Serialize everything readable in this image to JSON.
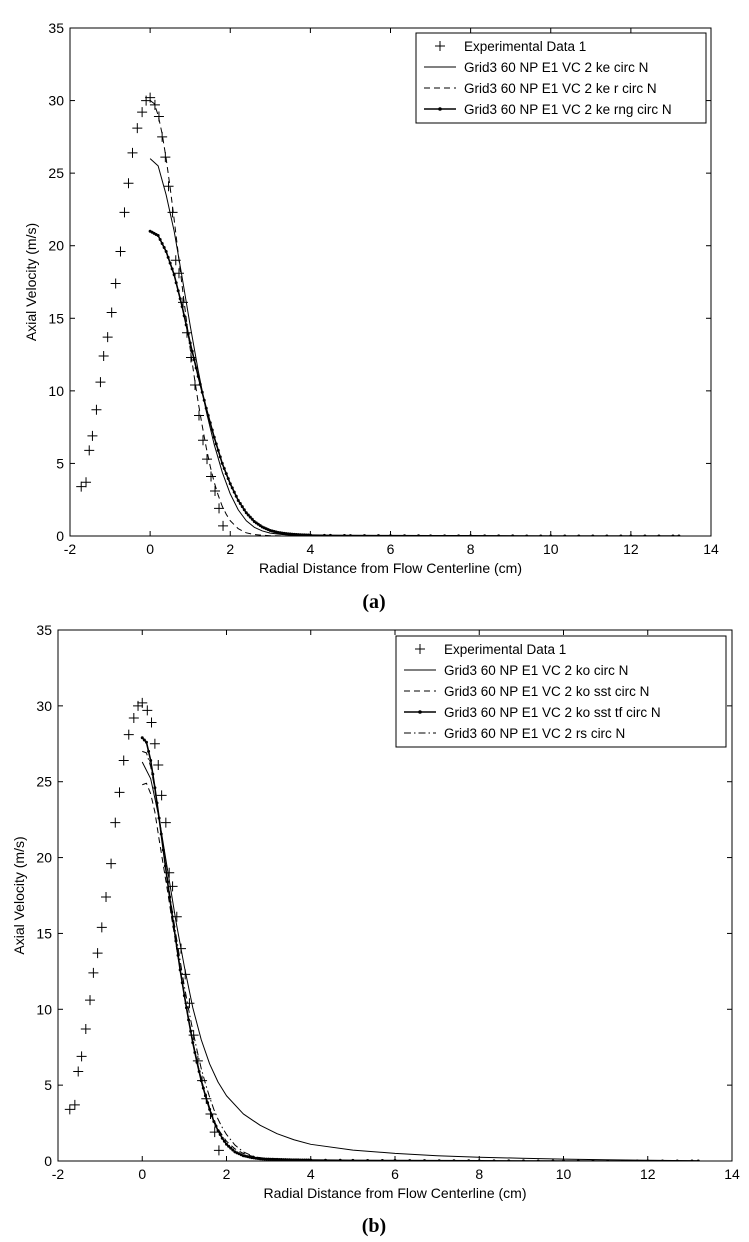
{
  "captions": {
    "a": "(a)",
    "b": "(b)"
  },
  "chart_data": [
    {
      "type": "line",
      "panel": "a",
      "xlabel": "Radial Distance from Flow Centerline (cm)",
      "ylabel": "Axial Velocity (m/s)",
      "xlim": [
        -2,
        14
      ],
      "ylim": [
        0,
        35
      ],
      "xticks": [
        "-2",
        "0",
        "2",
        "4",
        "6",
        "8",
        "10",
        "12",
        "14"
      ],
      "yticks": [
        "0",
        "5",
        "10",
        "15",
        "20",
        "25",
        "30",
        "35"
      ],
      "grid": false,
      "legend_position": "top-right",
      "series": [
        {
          "name": "Experimental Data 1",
          "style": "plus-markers",
          "x": [
            -1.72,
            -1.6,
            -1.52,
            -1.44,
            -1.34,
            -1.24,
            -1.16,
            -1.06,
            -0.96,
            -0.86,
            -0.74,
            -0.64,
            -0.54,
            -0.44,
            -0.32,
            -0.2,
            -0.1,
            0.0,
            0.12,
            0.22,
            0.3,
            0.38,
            0.46,
            0.56,
            0.64,
            0.72,
            0.82,
            0.92,
            1.02,
            1.12,
            1.22,
            1.32,
            1.42,
            1.52,
            1.62,
            1.72,
            1.82
          ],
          "y": [
            3.4,
            3.7,
            5.9,
            6.9,
            8.7,
            10.6,
            12.4,
            13.7,
            15.4,
            17.4,
            19.6,
            22.3,
            24.3,
            26.4,
            28.1,
            29.2,
            30.0,
            30.2,
            29.7,
            28.9,
            27.5,
            26.1,
            24.1,
            22.3,
            19.0,
            18.1,
            16.1,
            14.0,
            12.3,
            10.4,
            8.3,
            6.6,
            5.3,
            4.1,
            3.1,
            1.9,
            0.7
          ]
        },
        {
          "name": "Grid3 60 NP E1 VC 2 ke circ N",
          "style": "solid",
          "x": [
            0.0,
            0.2,
            0.4,
            0.6,
            0.8,
            1.0,
            1.2,
            1.4,
            1.6,
            1.8,
            2.0,
            2.2,
            2.4,
            2.6,
            2.8,
            3.0,
            3.3,
            3.6,
            4.0,
            5.0,
            7.0,
            10.0,
            13.2
          ],
          "y": [
            26.0,
            25.5,
            23.5,
            21.0,
            17.8,
            14.5,
            11.4,
            8.6,
            6.3,
            4.4,
            2.9,
            1.8,
            1.05,
            0.6,
            0.35,
            0.2,
            0.1,
            0.05,
            0.02,
            0.01,
            0.0,
            0.0,
            0.0
          ]
        },
        {
          "name": "Grid3 60 NP E1 VC 2 ke r circ N",
          "style": "dashed",
          "x": [
            0.0,
            0.1,
            0.2,
            0.3,
            0.4,
            0.5,
            0.6,
            0.7,
            0.8,
            0.9,
            1.0,
            1.1,
            1.2,
            1.3,
            1.4,
            1.5,
            1.6,
            1.7,
            1.8,
            1.9,
            2.0,
            2.2,
            2.4,
            2.6,
            2.8,
            3.0,
            3.3,
            3.6,
            4.0,
            5.0,
            7.0,
            10.0,
            13.2
          ],
          "y": [
            30.0,
            29.8,
            29.0,
            27.7,
            26.0,
            24.0,
            21.8,
            19.5,
            17.2,
            15.0,
            12.9,
            11.0,
            9.2,
            7.6,
            6.1,
            4.8,
            3.7,
            2.8,
            2.05,
            1.5,
            1.05,
            0.5,
            0.22,
            0.1,
            0.05,
            0.02,
            0.01,
            0.0,
            0.0,
            0.0,
            0.0,
            0.0,
            0.0
          ]
        },
        {
          "name": "Grid3 60 NP E1 VC 2 ke rng circ N",
          "style": "solid-dotted",
          "x": [
            0.0,
            0.2,
            0.4,
            0.6,
            0.8,
            1.0,
            1.2,
            1.4,
            1.6,
            1.8,
            2.0,
            2.2,
            2.4,
            2.6,
            2.8,
            3.0,
            3.2,
            3.4,
            3.6,
            3.8,
            4.0,
            4.5,
            5.0,
            6.0,
            7.0,
            8.0,
            10.0,
            12.0,
            13.2
          ],
          "y": [
            21.0,
            20.7,
            19.6,
            18.0,
            15.8,
            13.3,
            11.0,
            8.8,
            6.8,
            5.0,
            3.6,
            2.45,
            1.6,
            1.0,
            0.62,
            0.38,
            0.24,
            0.16,
            0.11,
            0.08,
            0.06,
            0.04,
            0.03,
            0.02,
            0.01,
            0.01,
            0.0,
            0.0,
            0.0
          ]
        }
      ]
    },
    {
      "type": "line",
      "panel": "b",
      "xlabel": "Radial Distance from Flow Centerline (cm)",
      "ylabel": "Axial Velocity (m/s)",
      "xlim": [
        -2,
        14
      ],
      "ylim": [
        0,
        35
      ],
      "xticks": [
        "-2",
        "0",
        "2",
        "4",
        "6",
        "8",
        "10",
        "12",
        "14"
      ],
      "yticks": [
        "0",
        "5",
        "10",
        "15",
        "20",
        "25",
        "30",
        "35"
      ],
      "grid": false,
      "legend_position": "top-right",
      "series": [
        {
          "name": "Experimental Data 1",
          "style": "plus-markers",
          "x": [
            -1.72,
            -1.6,
            -1.52,
            -1.44,
            -1.34,
            -1.24,
            -1.16,
            -1.06,
            -0.96,
            -0.86,
            -0.74,
            -0.64,
            -0.54,
            -0.44,
            -0.32,
            -0.2,
            -0.1,
            0.0,
            0.12,
            0.22,
            0.3,
            0.38,
            0.46,
            0.56,
            0.64,
            0.72,
            0.82,
            0.92,
            1.02,
            1.12,
            1.22,
            1.32,
            1.42,
            1.52,
            1.62,
            1.72,
            1.82
          ],
          "y": [
            3.4,
            3.7,
            5.9,
            6.9,
            8.7,
            10.6,
            12.4,
            13.7,
            15.4,
            17.4,
            19.6,
            22.3,
            24.3,
            26.4,
            28.1,
            29.2,
            30.0,
            30.2,
            29.7,
            28.9,
            27.5,
            26.1,
            24.1,
            22.3,
            19.0,
            18.1,
            16.1,
            14.0,
            12.3,
            10.4,
            8.3,
            6.6,
            5.3,
            4.1,
            3.1,
            1.9,
            0.7
          ]
        },
        {
          "name": "Grid3 60 NP E1 VC 2 ko circ N",
          "style": "solid",
          "x": [
            0.0,
            0.2,
            0.4,
            0.6,
            0.8,
            1.0,
            1.2,
            1.4,
            1.6,
            1.8,
            2.0,
            2.4,
            2.8,
            3.2,
            3.6,
            4.0,
            5.0,
            6.0,
            7.0,
            8.0,
            9.0,
            10.0,
            11.0,
            12.0,
            13.2
          ],
          "y": [
            26.3,
            25.2,
            22.6,
            19.2,
            15.8,
            12.8,
            10.1,
            8.0,
            6.4,
            5.2,
            4.3,
            3.1,
            2.35,
            1.8,
            1.4,
            1.1,
            0.72,
            0.5,
            0.35,
            0.25,
            0.18,
            0.12,
            0.08,
            0.05,
            0.02
          ]
        },
        {
          "name": "Grid3 60 NP E1 VC 2 ko sst circ N",
          "style": "dashed",
          "x": [
            0.0,
            0.1,
            0.2,
            0.3,
            0.4,
            0.5,
            0.6,
            0.7,
            0.8,
            0.9,
            1.0,
            1.1,
            1.2,
            1.3,
            1.4,
            1.5,
            1.6,
            1.7,
            1.8,
            2.0,
            2.2,
            2.4,
            2.6,
            2.8,
            3.0,
            3.5,
            4.0,
            6.0,
            9.0,
            13.2
          ],
          "y": [
            24.8,
            24.9,
            24.2,
            23.0,
            21.2,
            19.5,
            17.8,
            16.0,
            14.3,
            12.6,
            10.9,
            9.4,
            7.9,
            6.6,
            5.4,
            4.4,
            3.5,
            2.7,
            2.1,
            1.3,
            0.8,
            0.5,
            0.32,
            0.22,
            0.15,
            0.08,
            0.05,
            0.02,
            0.0,
            0.0
          ]
        },
        {
          "name": "Grid3 60 NP E1 VC 2 ko sst tf circ N",
          "style": "solid-dotted",
          "x": [
            0.0,
            0.1,
            0.2,
            0.3,
            0.4,
            0.5,
            0.6,
            0.7,
            0.8,
            0.9,
            1.0,
            1.1,
            1.2,
            1.3,
            1.4,
            1.5,
            1.6,
            1.7,
            1.8,
            1.9,
            2.0,
            2.2,
            2.4,
            2.6,
            2.8,
            3.0,
            3.5,
            4.0,
            5.0,
            6.0,
            8.0,
            10.0,
            12.0,
            13.2
          ],
          "y": [
            27.9,
            27.6,
            26.4,
            24.6,
            22.6,
            20.5,
            18.4,
            16.4,
            14.5,
            12.6,
            10.9,
            9.3,
            7.8,
            6.5,
            5.3,
            4.3,
            3.4,
            2.6,
            2.0,
            1.5,
            1.1,
            0.6,
            0.35,
            0.22,
            0.15,
            0.12,
            0.08,
            0.06,
            0.04,
            0.03,
            0.01,
            0.0,
            0.0,
            0.0
          ]
        },
        {
          "name": "Grid3 60 NP E1 VC 2 rs circ N",
          "style": "dash-dot",
          "x": [
            0.0,
            0.1,
            0.2,
            0.3,
            0.4,
            0.5,
            0.6,
            0.7,
            0.8,
            0.9,
            1.0,
            1.1,
            1.2,
            1.3,
            1.4,
            1.5,
            1.6,
            1.7,
            1.8,
            1.9,
            2.0,
            2.2,
            2.4,
            2.6,
            2.8,
            3.0,
            3.5,
            4.0,
            6.0,
            9.0,
            13.2
          ],
          "y": [
            27.0,
            26.9,
            26.0,
            24.5,
            22.6,
            20.6,
            18.6,
            16.7,
            14.9,
            13.2,
            11.5,
            10.0,
            8.6,
            7.3,
            6.1,
            5.1,
            4.2,
            3.4,
            2.75,
            2.2,
            1.75,
            1.05,
            0.6,
            0.35,
            0.2,
            0.12,
            0.05,
            0.03,
            0.01,
            0.0,
            0.0
          ]
        }
      ]
    }
  ]
}
